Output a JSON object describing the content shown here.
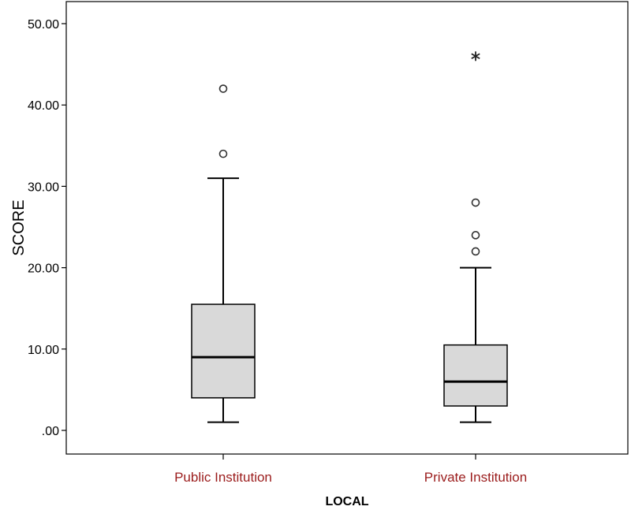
{
  "chart_data": {
    "type": "boxplot",
    "xlabel": "LOCAL",
    "ylabel": "SCORE",
    "ylim": [
      -3,
      53
    ],
    "yticks": [
      0,
      10,
      20,
      30,
      40,
      50
    ],
    "ytick_labels": [
      ".00",
      "10.00",
      "20.00",
      "30.00",
      "40.00",
      "50.00"
    ],
    "grid": false,
    "categories": [
      "Public Institution",
      "Private Institution"
    ],
    "boxes": [
      {
        "name": "Public Institution",
        "whisker_low": 1,
        "q1": 4,
        "median": 9,
        "q3": 15.5,
        "whisker_high": 31,
        "outliers": [
          34,
          42
        ],
        "extremes": []
      },
      {
        "name": "Private Institution",
        "whisker_low": 1,
        "q1": 3,
        "median": 6,
        "q3": 10.5,
        "whisker_high": 20,
        "outliers": [
          22,
          24,
          28
        ],
        "extremes": [
          46
        ]
      }
    ],
    "colors": {
      "box_fill": "#d9d9d9",
      "line": "#000000",
      "category_label": "#9b1c1c",
      "outlier_stroke": "#333333"
    }
  }
}
